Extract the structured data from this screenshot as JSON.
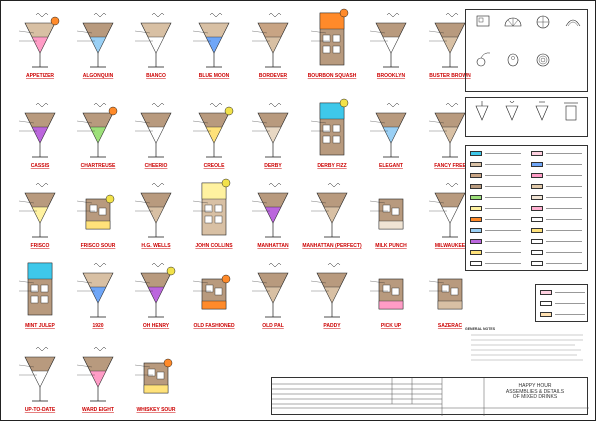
{
  "drinks": [
    {
      "name": "APPETIZER",
      "glass": "cocktail",
      "fill": "#d8c0a4",
      "layer": "#ff9cc6",
      "garnish": "orange"
    },
    {
      "name": "ALGONQUIN",
      "glass": "cocktail",
      "fill": "#b89a7e",
      "layer": "#9ad0f5",
      "garnish": "none"
    },
    {
      "name": "BIANCO",
      "glass": "cocktail",
      "fill": "#d8c0a4",
      "layer": "#ffffff",
      "garnish": "none"
    },
    {
      "name": "BLUE MOON",
      "glass": "cocktail",
      "fill": "#d8c0a4",
      "layer": "#6fa6f7",
      "garnish": "none"
    },
    {
      "name": "BORDEVER",
      "glass": "cocktail",
      "fill": "#c8a484",
      "layer": "#d8c0a4",
      "garnish": "none"
    },
    {
      "name": "BOURBON SQUASH",
      "glass": "highball",
      "fill": "#b89a7e",
      "layer": "#ff8a2a",
      "garnish": "orange"
    },
    {
      "name": "BROOKLYN",
      "glass": "cocktail",
      "fill": "#b89a7e",
      "layer": "#ffffff",
      "garnish": "none"
    },
    {
      "name": "BUSTER BROWN",
      "glass": "cocktail",
      "fill": "#b89a7e",
      "layer": "#d8c0a4",
      "garnish": "none"
    },
    {
      "name": "CASSIS",
      "glass": "cocktail",
      "fill": "#b89a7e",
      "layer": "#bb66dd",
      "garnish": "none"
    },
    {
      "name": "CHARTREUSE",
      "glass": "cocktail",
      "fill": "#b89a7e",
      "layer": "#9de07a",
      "garnish": "orange"
    },
    {
      "name": "CHEERIO",
      "glass": "cocktail",
      "fill": "#b89a7e",
      "layer": "#ffffff",
      "garnish": "none"
    },
    {
      "name": "CREOLE",
      "glass": "cocktail",
      "fill": "#b89a7e",
      "layer": "#ffe27a",
      "garnish": "lime"
    },
    {
      "name": "DERBY",
      "glass": "cocktail",
      "fill": "#b89a7e",
      "layer": "#e8d8c4",
      "garnish": "none"
    },
    {
      "name": "DERBY FIZZ",
      "glass": "highball",
      "fill": "#b89a7e",
      "layer": "#3ec8ea",
      "garnish": "lime"
    },
    {
      "name": "ELEGANT",
      "glass": "cocktail",
      "fill": "#b89a7e",
      "layer": "#9ad0f5",
      "garnish": "none"
    },
    {
      "name": "FANCY FREE",
      "glass": "cocktail",
      "fill": "#b89a7e",
      "layer": "#d8c0a4",
      "garnish": "none"
    },
    {
      "name": "FRISCO",
      "glass": "cocktail",
      "fill": "#b89a7e",
      "layer": "#fff2a0",
      "garnish": "none"
    },
    {
      "name": "FRISCO SOUR",
      "glass": "rocks",
      "fill": "#b89a7e",
      "layer": "#ffe27a",
      "garnish": "lime"
    },
    {
      "name": "H.G. WELLS",
      "glass": "cocktail",
      "fill": "#b89a7e",
      "layer": "#d8c0a4",
      "garnish": "none"
    },
    {
      "name": "JOHN COLLINS",
      "glass": "highball",
      "fill": "#d8c0a4",
      "layer": "#fff2a0",
      "garnish": "lime"
    },
    {
      "name": "MANHATTAN",
      "glass": "cocktail",
      "fill": "#b89a7e",
      "layer": "#bb66dd",
      "garnish": "none"
    },
    {
      "name": "MANHATTAN (PERFECT)",
      "glass": "cocktail",
      "fill": "#b89a7e",
      "layer": "#d8c0a4",
      "garnish": "none"
    },
    {
      "name": "MILK PUNCH",
      "glass": "rocks",
      "fill": "#b89a7e",
      "layer": "#f0e4d4",
      "garnish": "none"
    },
    {
      "name": "MILWAUKEE",
      "glass": "cocktail",
      "fill": "#b89a7e",
      "layer": "#ffffff",
      "garnish": "none"
    },
    {
      "name": "MINT JULEP",
      "glass": "highball",
      "fill": "#b89a7e",
      "layer": "#3ec8ea",
      "garnish": "none"
    },
    {
      "name": "1920",
      "glass": "cocktail",
      "fill": "#d8c0a4",
      "layer": "#6fa6f7",
      "garnish": "none"
    },
    {
      "name": "OH HENRY",
      "glass": "cocktail",
      "fill": "#b89a7e",
      "layer": "#bb66dd",
      "garnish": "lime"
    },
    {
      "name": "OLD FASHIONED",
      "glass": "rocks",
      "fill": "#b89a7e",
      "layer": "#ff8a2a",
      "garnish": "orange"
    },
    {
      "name": "OLD PAL",
      "glass": "cocktail",
      "fill": "#b89a7e",
      "layer": "#d8c0a4",
      "garnish": "none"
    },
    {
      "name": "PADDY",
      "glass": "cocktail",
      "fill": "#b89a7e",
      "layer": "#d8c0a4",
      "garnish": "none"
    },
    {
      "name": "PICK UP",
      "glass": "rocks",
      "fill": "#b89a7e",
      "layer": "#ff9cc6",
      "garnish": "none"
    },
    {
      "name": "SAZERAC",
      "glass": "rocks",
      "fill": "#b89a7e",
      "layer": "#d8c0a4",
      "garnish": "none"
    },
    {
      "name": "UP-TO-DATE",
      "glass": "cocktail",
      "fill": "#b89a7e",
      "layer": "#ffffff",
      "garnish": "none"
    },
    {
      "name": "WARD EIGHT",
      "glass": "cocktail",
      "fill": "#b89a7e",
      "layer": "#ff9cc6",
      "garnish": "none"
    },
    {
      "name": "WHISKEY SOUR",
      "glass": "rocks",
      "fill": "#b89a7e",
      "layer": "#ffe27a",
      "garnish": "orange"
    }
  ],
  "colors": {
    "line": "#222222",
    "label": "#cc0000",
    "ice": "#ffffff"
  },
  "legend": [
    {
      "c": "#3ec8ea"
    },
    {
      "c": "#d8c0a4"
    },
    {
      "c": "#c8a484"
    },
    {
      "c": "#b89a7e"
    },
    {
      "c": "#9de07a"
    },
    {
      "c": "#fff2a0"
    },
    {
      "c": "#ff8a2a"
    },
    {
      "c": "#9ad0f5"
    },
    {
      "c": "#bb66dd"
    },
    {
      "c": "#ffe27a"
    },
    {
      "c": "#ffffff"
    },
    {
      "c": "#ffd0e0"
    },
    {
      "c": "#6fa6f7"
    },
    {
      "c": "#ff9cc6"
    },
    {
      "c": "#e0c8a8"
    },
    {
      "c": "#f0e4d4"
    },
    {
      "c": "#ffb0d0"
    },
    {
      "c": "#ffffff"
    },
    {
      "c": "#ffe27a"
    },
    {
      "c": "#ffffff"
    },
    {
      "c": "#ffffff"
    },
    {
      "c": "#ffffff"
    }
  ],
  "legend2": [
    {
      "c": "#ffd0e0"
    },
    {
      "c": "#ffffff"
    },
    {
      "c": "#ffe0b0"
    }
  ],
  "notes": {
    "title": "GENERAL NOTES"
  },
  "title": {
    "line1": "HAPPY HOUR",
    "line2": "ASSEMBLIES & DETAILS",
    "line3": "OF MIXED DRINKS"
  }
}
